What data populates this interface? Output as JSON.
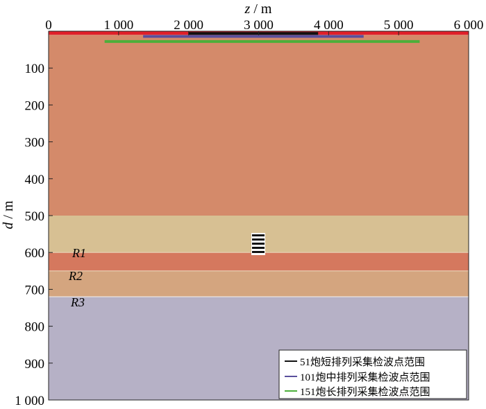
{
  "axes": {
    "x_title_var": "z",
    "x_title_unit": " / m",
    "y_title_var": "d",
    "y_title_unit": " / m",
    "x_ticks": [
      "0",
      "1 000",
      "2 000",
      "3 000",
      "4 000",
      "5 000",
      "6 000"
    ],
    "y_ticks": [
      "100",
      "200",
      "300",
      "400",
      "500",
      "600",
      "700",
      "800",
      "900",
      "1 000"
    ],
    "x_range": [
      0,
      6000
    ],
    "y_range": [
      0,
      1000
    ]
  },
  "layers": [
    {
      "name": "surface",
      "top": 0,
      "bottom": 10,
      "color": "#e0202a"
    },
    {
      "name": "upper",
      "top": 10,
      "bottom": 500,
      "color": "#d48a6a"
    },
    {
      "name": "middle",
      "top": 500,
      "bottom": 600,
      "color": "#d7c093"
    },
    {
      "name": "R1-layer",
      "top": 600,
      "bottom": 650,
      "color": "#d5785e"
    },
    {
      "name": "R2-layer",
      "top": 650,
      "bottom": 720,
      "color": "#d4a57f"
    },
    {
      "name": "basement",
      "top": 720,
      "bottom": 1000,
      "color": "#b6b1c6"
    }
  ],
  "reflector_labels": {
    "r1": "R1",
    "r2": "R2",
    "r3": "R3"
  },
  "receiver_ranges": [
    {
      "name": "short",
      "x_start": 2000,
      "x_end": 3850,
      "depth": 6,
      "color": "#111111"
    },
    {
      "name": "medium",
      "x_start": 1350,
      "x_end": 4500,
      "depth": 14,
      "color": "#5a4f9c"
    },
    {
      "name": "long",
      "x_start": 800,
      "x_end": 5300,
      "depth": 28,
      "color": "#4caf3a"
    }
  ],
  "legend": {
    "entries": [
      {
        "text": "51炮短排列采集检波点范围",
        "color": "#111111"
      },
      {
        "text": "101炮中排列采集检波点范围",
        "color": "#5a4f9c"
      },
      {
        "text": "151炮长排列采集检波点范围",
        "color": "#4caf3a"
      }
    ]
  }
}
